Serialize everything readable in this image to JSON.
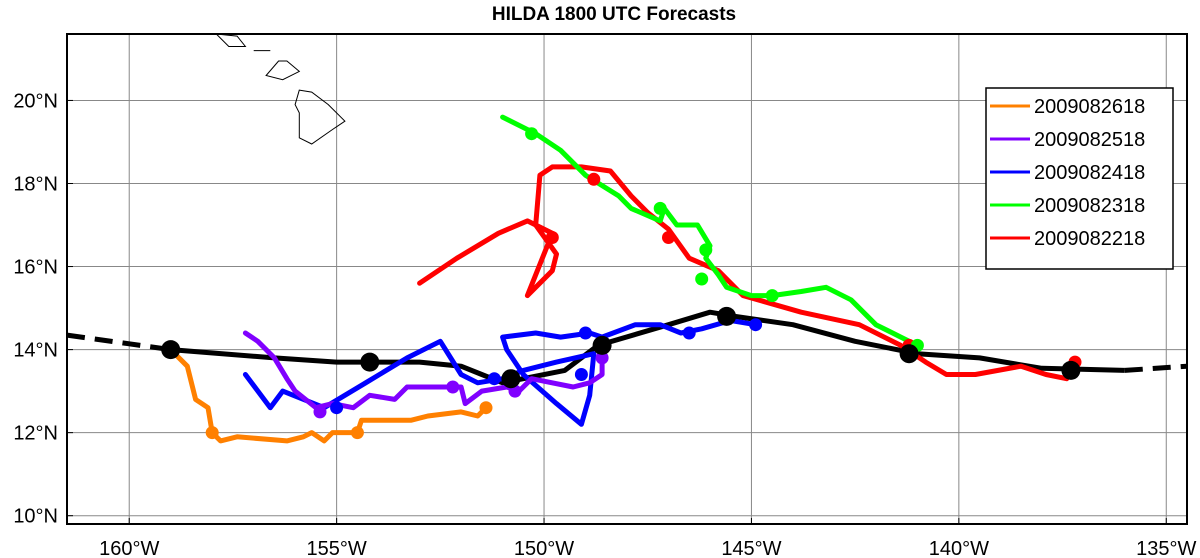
{
  "chart_data": {
    "type": "line",
    "title": "HILDA 1800 UTC Forecasts",
    "xlabel": "",
    "ylabel": "",
    "xlim": [
      -161.5,
      -134.5
    ],
    "ylim": [
      9.8,
      21.6
    ],
    "grid": true,
    "legend_position": "top-right",
    "x_ticks": [
      {
        "value": -160,
        "label": "160°W"
      },
      {
        "value": -155,
        "label": "155°W"
      },
      {
        "value": -150,
        "label": "150°W"
      },
      {
        "value": -145,
        "label": "145°W"
      },
      {
        "value": -140,
        "label": "140°W"
      },
      {
        "value": -135,
        "label": "135°W"
      }
    ],
    "y_ticks": [
      {
        "value": 10,
        "label": "10°N"
      },
      {
        "value": 12,
        "label": "12°N"
      },
      {
        "value": 14,
        "label": "14°N"
      },
      {
        "value": 16,
        "label": "16°N"
      },
      {
        "value": 18,
        "label": "18°N"
      },
      {
        "value": 20,
        "label": "20°N"
      }
    ],
    "coastlines": [
      [
        [
          -157.9,
          21.6
        ],
        [
          -157.6,
          21.3
        ],
        [
          -157.2,
          21.3
        ],
        [
          -157.4,
          21.55
        ]
      ],
      [
        [
          -156.4,
          20.95
        ],
        [
          -156.7,
          20.6
        ],
        [
          -156.3,
          20.5
        ],
        [
          -155.9,
          20.7
        ],
        [
          -156.2,
          20.95
        ]
      ],
      [
        [
          -155.9,
          20.25
        ],
        [
          -155.6,
          20.2
        ],
        [
          -155.2,
          19.9
        ],
        [
          -154.8,
          19.5
        ],
        [
          -155.1,
          19.3
        ],
        [
          -155.6,
          18.95
        ],
        [
          -155.9,
          19.1
        ],
        [
          -155.9,
          19.7
        ],
        [
          -156.0,
          19.9
        ]
      ],
      [
        [
          -157.0,
          21.2
        ],
        [
          -156.6,
          21.2
        ]
      ]
    ],
    "best_track": {
      "color": "#000000",
      "dashed_start": [
        [
          -161.5,
          14.35
        ],
        [
          -159.0,
          14.0
        ]
      ],
      "solid": [
        [
          -159.0,
          14.0
        ],
        [
          -156.5,
          13.8
        ],
        [
          -155.0,
          13.7
        ],
        [
          -153.0,
          13.7
        ],
        [
          -152.0,
          13.6
        ],
        [
          -151.5,
          13.4
        ],
        [
          -151.0,
          13.2
        ],
        [
          -149.5,
          13.5
        ],
        [
          -148.7,
          14.1
        ],
        [
          -147.0,
          14.6
        ],
        [
          -146.0,
          14.9
        ],
        [
          -145.4,
          14.8
        ],
        [
          -144.0,
          14.6
        ],
        [
          -142.5,
          14.2
        ],
        [
          -141.0,
          13.9
        ],
        [
          -139.5,
          13.8
        ],
        [
          -138.0,
          13.55
        ],
        [
          -136.0,
          13.5
        ]
      ],
      "dashed_end": [
        [
          -136.0,
          13.5
        ],
        [
          -134.5,
          13.6
        ]
      ],
      "markers": [
        [
          -159.0,
          14.0
        ],
        [
          -154.2,
          13.7
        ],
        [
          -150.8,
          13.3
        ],
        [
          -148.6,
          14.1
        ],
        [
          -145.6,
          14.8
        ],
        [
          -141.2,
          13.9
        ],
        [
          -137.3,
          13.5
        ]
      ]
    },
    "series": [
      {
        "name": "2009082618",
        "color": "#ff8000",
        "points": [
          [
            -159.0,
            14.0
          ],
          [
            -158.6,
            13.6
          ],
          [
            -158.4,
            12.8
          ],
          [
            -158.1,
            12.6
          ],
          [
            -158.0,
            12.0
          ],
          [
            -157.8,
            11.8
          ],
          [
            -157.4,
            11.9
          ],
          [
            -156.2,
            11.8
          ],
          [
            -155.8,
            11.9
          ],
          [
            -155.6,
            12.0
          ],
          [
            -155.3,
            11.8
          ],
          [
            -155.1,
            12.0
          ],
          [
            -154.5,
            12.0
          ],
          [
            -154.4,
            12.3
          ],
          [
            -153.2,
            12.3
          ],
          [
            -152.8,
            12.4
          ],
          [
            -152.0,
            12.5
          ],
          [
            -151.6,
            12.4
          ],
          [
            -151.4,
            12.6
          ]
        ],
        "markers": [
          [
            -158.0,
            12.0
          ],
          [
            -154.5,
            12.0
          ],
          [
            -151.4,
            12.6
          ]
        ]
      },
      {
        "name": "2009082518",
        "color": "#8000ff",
        "points": [
          [
            -157.2,
            14.4
          ],
          [
            -156.9,
            14.2
          ],
          [
            -156.5,
            13.8
          ],
          [
            -156.2,
            13.3
          ],
          [
            -156.0,
            13.0
          ],
          [
            -155.5,
            12.6
          ],
          [
            -155.1,
            12.7
          ],
          [
            -154.6,
            12.6
          ],
          [
            -154.2,
            12.9
          ],
          [
            -153.6,
            12.8
          ],
          [
            -153.3,
            13.1
          ],
          [
            -152.3,
            13.1
          ],
          [
            -152.0,
            13.1
          ],
          [
            -151.9,
            12.7
          ],
          [
            -151.5,
            13.0
          ],
          [
            -150.9,
            13.1
          ],
          [
            -150.6,
            13.0
          ],
          [
            -150.3,
            13.3
          ],
          [
            -149.3,
            13.1
          ],
          [
            -148.9,
            13.2
          ],
          [
            -148.6,
            13.4
          ],
          [
            -148.6,
            13.8
          ]
        ],
        "markers": [
          [
            -155.4,
            12.5
          ],
          [
            -152.2,
            13.1
          ],
          [
            -150.7,
            13.0
          ],
          [
            -148.6,
            13.8
          ]
        ]
      },
      {
        "name": "2009082418",
        "color": "#0000ff",
        "points": [
          [
            -157.2,
            13.4
          ],
          [
            -156.6,
            12.6
          ],
          [
            -156.3,
            13.0
          ],
          [
            -155.3,
            12.6
          ],
          [
            -154.3,
            13.2
          ],
          [
            -153.3,
            13.8
          ],
          [
            -152.5,
            14.2
          ],
          [
            -152.0,
            13.4
          ],
          [
            -151.6,
            13.2
          ],
          [
            -151.0,
            13.3
          ],
          [
            -150.5,
            13.5
          ],
          [
            -149.7,
            13.7
          ],
          [
            -148.8,
            13.9
          ],
          [
            -148.9,
            12.9
          ],
          [
            -149.1,
            12.2
          ],
          [
            -149.7,
            12.7
          ],
          [
            -150.5,
            13.4
          ],
          [
            -150.9,
            14.0
          ],
          [
            -151.0,
            14.3
          ],
          [
            -150.2,
            14.4
          ],
          [
            -149.6,
            14.3
          ],
          [
            -148.9,
            14.4
          ],
          [
            -148.6,
            14.3
          ],
          [
            -147.8,
            14.6
          ],
          [
            -147.2,
            14.6
          ],
          [
            -146.7,
            14.4
          ],
          [
            -146.2,
            14.5
          ],
          [
            -145.5,
            14.7
          ],
          [
            -144.9,
            14.6
          ]
        ],
        "markers": [
          [
            -155.0,
            12.6
          ],
          [
            -151.2,
            13.3
          ],
          [
            -149.1,
            13.4
          ],
          [
            -149.0,
            14.4
          ],
          [
            -146.5,
            14.4
          ],
          [
            -144.9,
            14.6
          ]
        ]
      },
      {
        "name": "2009082318",
        "color": "#00ff00",
        "points": [
          [
            -151.0,
            19.6
          ],
          [
            -150.2,
            19.2
          ],
          [
            -149.6,
            18.8
          ],
          [
            -149.0,
            18.2
          ],
          [
            -148.2,
            17.7
          ],
          [
            -147.9,
            17.4
          ],
          [
            -147.2,
            17.1
          ],
          [
            -147.1,
            17.4
          ],
          [
            -146.8,
            17.0
          ],
          [
            -146.3,
            17.0
          ],
          [
            -146.0,
            16.5
          ],
          [
            -146.1,
            16.2
          ],
          [
            -145.8,
            15.8
          ],
          [
            -145.6,
            15.5
          ],
          [
            -145.0,
            15.3
          ],
          [
            -144.5,
            15.3
          ],
          [
            -143.8,
            15.4
          ],
          [
            -143.2,
            15.5
          ],
          [
            -142.6,
            15.2
          ],
          [
            -142.0,
            14.6
          ],
          [
            -141.4,
            14.3
          ],
          [
            -141.0,
            14.1
          ]
        ],
        "markers": [
          [
            -150.3,
            19.2
          ],
          [
            -147.2,
            17.4
          ],
          [
            -146.1,
            16.4
          ],
          [
            -146.2,
            15.7
          ],
          [
            -144.5,
            15.3
          ],
          [
            -141.0,
            14.1
          ]
        ]
      },
      {
        "name": "2009082218",
        "color": "#ff0000",
        "points": [
          [
            -153.0,
            15.6
          ],
          [
            -152.1,
            16.2
          ],
          [
            -151.1,
            16.8
          ],
          [
            -150.4,
            17.1
          ],
          [
            -149.8,
            16.8
          ],
          [
            -150.4,
            15.3
          ],
          [
            -149.8,
            15.9
          ],
          [
            -149.7,
            16.3
          ],
          [
            -150.2,
            17.0
          ],
          [
            -150.1,
            18.2
          ],
          [
            -149.8,
            18.4
          ],
          [
            -149.1,
            18.4
          ],
          [
            -148.4,
            18.3
          ],
          [
            -147.9,
            17.7
          ],
          [
            -147.5,
            17.3
          ],
          [
            -147.0,
            16.9
          ],
          [
            -146.5,
            16.2
          ],
          [
            -145.8,
            15.9
          ],
          [
            -145.2,
            15.3
          ],
          [
            -143.8,
            14.9
          ],
          [
            -142.4,
            14.6
          ],
          [
            -141.4,
            14.1
          ],
          [
            -140.8,
            13.7
          ],
          [
            -140.3,
            13.4
          ],
          [
            -139.6,
            13.4
          ],
          [
            -138.5,
            13.6
          ],
          [
            -137.9,
            13.4
          ],
          [
            -137.4,
            13.3
          ],
          [
            -137.2,
            13.7
          ]
        ],
        "markers": [
          [
            -149.8,
            16.7
          ],
          [
            -148.8,
            18.1
          ],
          [
            -147.0,
            16.7
          ],
          [
            -141.2,
            14.1
          ],
          [
            -137.2,
            13.7
          ]
        ]
      }
    ]
  }
}
